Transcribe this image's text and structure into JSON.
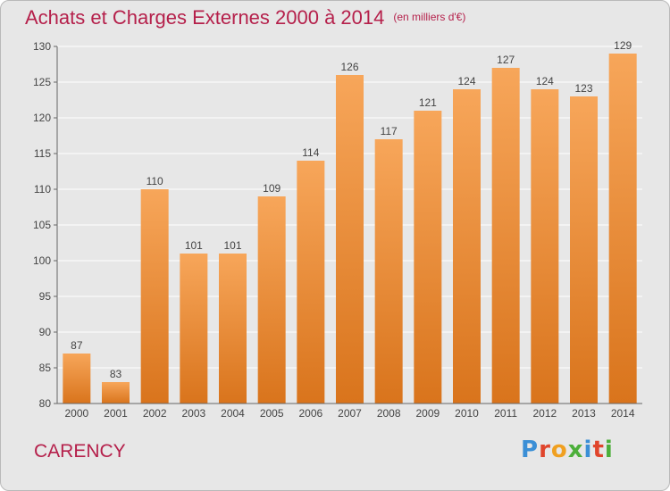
{
  "title": "Achats et Charges Externes 2000 à 2014",
  "unit": "(en milliers d'€)",
  "commune": "CARENCY",
  "logo": "Proxiti",
  "colors": {
    "title": "#b5204b",
    "bar_top": "#f7a65a",
    "bar_bottom": "#d9741c",
    "background": "#e7e7e7",
    "grid": "#ffffff"
  },
  "chart_data": {
    "type": "bar",
    "title": "Achats et Charges Externes 2000 à 2014",
    "subtitle": "(en milliers d'€)",
    "xlabel": "",
    "ylabel": "",
    "categories": [
      "2000",
      "2001",
      "2002",
      "2003",
      "2004",
      "2005",
      "2006",
      "2007",
      "2008",
      "2009",
      "2010",
      "2011",
      "2012",
      "2013",
      "2014"
    ],
    "values": [
      87,
      83,
      110,
      101,
      101,
      109,
      114,
      126,
      117,
      121,
      124,
      127,
      124,
      123,
      129
    ],
    "ylim": [
      80,
      130
    ],
    "yticks": [
      80,
      85,
      90,
      95,
      100,
      105,
      110,
      115,
      120,
      125,
      130
    ],
    "grid": true,
    "data_labels": true
  }
}
